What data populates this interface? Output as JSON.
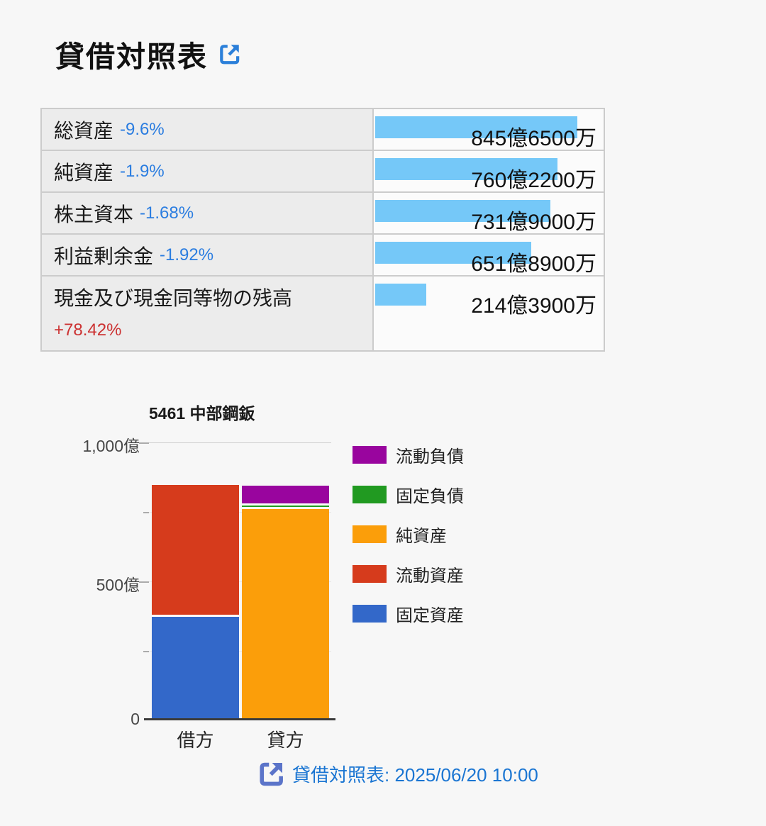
{
  "header": {
    "title": "貸借対照表"
  },
  "colors": {
    "page_bg": "#f7f7f7",
    "title_ink": "#111111",
    "label_ink": "#1a1a1a",
    "label_bg": "#ececec",
    "value_bg": "#fbfbfb",
    "table_border": "#cccccc",
    "bar_blue": "#75c8f8",
    "pct_down": "#2b7de0",
    "pct_up": "#cc3232",
    "link_blue": "#2b7fd9",
    "grid_major": "#cfcfcf",
    "grid_minor": "#e7e7e7",
    "footer_icon": "#5b74c9",
    "footer_link": "#1a75d2"
  },
  "table": {
    "bar_max_oku": 960,
    "rows": [
      {
        "label": "総資産",
        "pct": "-9.6%",
        "value": "845億6500万",
        "value_oku": 845.65
      },
      {
        "label": "純資産",
        "pct": "-1.9%",
        "value": "760億2200万",
        "value_oku": 760.22
      },
      {
        "label": "株主資本",
        "pct": "-1.68%",
        "value": "731億9000万",
        "value_oku": 731.9
      },
      {
        "label": "利益剰余金",
        "pct": "-1.92%",
        "value": "651億8900万",
        "value_oku": 651.89
      },
      {
        "label": "現金及び現金同等物の残高",
        "pct": "+78.42%",
        "value": "214億3900万",
        "value_oku": 214.39
      }
    ]
  },
  "chart_data": {
    "type": "bar",
    "stacked": true,
    "title": "5461 中部鋼鈑",
    "categories": [
      "借方",
      "貸方"
    ],
    "unit": "億円",
    "ylim": [
      0,
      1000
    ],
    "ytick_labels": [
      "1,000億",
      "500億",
      "0"
    ],
    "grid": true,
    "legend_position": "right",
    "series": [
      {
        "name": "流動負債",
        "color": "#99059e",
        "values": [
          0,
          73
        ]
      },
      {
        "name": "固定負債",
        "color": "#219a21",
        "values": [
          0,
          12
        ]
      },
      {
        "name": "純資産",
        "color": "#fb9e0a",
        "values": [
          0,
          760
        ]
      },
      {
        "name": "流動資産",
        "color": "#d63b1c",
        "values": [
          473,
          0
        ]
      },
      {
        "name": "固定資産",
        "color": "#3368c9",
        "values": [
          373,
          0
        ]
      }
    ]
  },
  "footer": {
    "link_label": "貸借対照表: 2025/06/20 10:00"
  }
}
